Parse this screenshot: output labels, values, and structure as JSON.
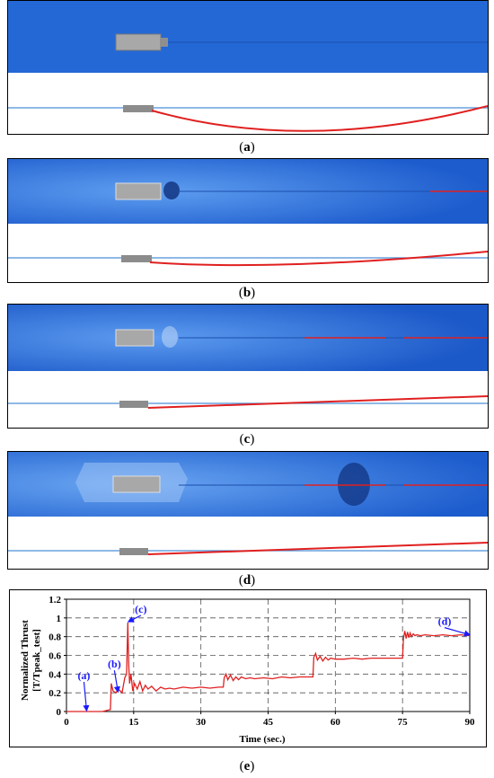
{
  "captions": {
    "a": "a",
    "b": "b",
    "c": "c",
    "d": "d",
    "e": "e"
  },
  "colors": {
    "water_dark": "#1f5fcf",
    "water_light": "#6aa8f0",
    "cable": "#e02020",
    "waterline": "#4a8fd8",
    "vessel": "#9a9a9a",
    "annotation": "#1a1aff"
  },
  "chart_data": {
    "type": "line",
    "xlabel": "Time (sec.)",
    "ylabel_line1": "Normalized Thrust",
    "ylabel_line2": "[T/Tpeak_test]",
    "xlim": [
      0,
      90
    ],
    "ylim": [
      0,
      1.2
    ],
    "xticks": [
      0,
      15,
      30,
      45,
      60,
      75,
      90
    ],
    "xtick_labels": [
      "0",
      "15",
      "30",
      "45",
      "60",
      "75",
      "90"
    ],
    "yticks": [
      0,
      0.2,
      0.4,
      0.6,
      0.8,
      1,
      1.2
    ],
    "ytick_labels": [
      "0",
      "0.2",
      "0.4",
      "0.6",
      "0.8",
      "1",
      "1.2"
    ],
    "grid": true,
    "series": [
      {
        "x": [
          0,
          8,
          9.8,
          10,
          10.4,
          11,
          11.6,
          12.4,
          13.0,
          13.4,
          13.7,
          13.9,
          14.1,
          14.4,
          14.8,
          15.2,
          15.8,
          16.4,
          17.0,
          17.6,
          18.2,
          19,
          20,
          21,
          22,
          23,
          24,
          26,
          28,
          30,
          32,
          34,
          35,
          35.2,
          35.6,
          36,
          36.6,
          37.2,
          37.8,
          38.4,
          39,
          40,
          41,
          42,
          44,
          46,
          48,
          50,
          52,
          54,
          55,
          55.2,
          55.6,
          56,
          56.6,
          57.2,
          57.8,
          58.4,
          59,
          60,
          62,
          64,
          66,
          68,
          70,
          72,
          74,
          75,
          75.2,
          75.5,
          75.8,
          76.1,
          76.4,
          76.7,
          77,
          77.4,
          77.8,
          78.2,
          79,
          80,
          82,
          84,
          86,
          88,
          90
        ],
        "y": [
          0,
          0,
          0.02,
          0.3,
          0.22,
          0.2,
          0.24,
          0.2,
          0.36,
          0.4,
          0.95,
          0.5,
          0.3,
          0.4,
          0.22,
          0.3,
          0.24,
          0.32,
          0.22,
          0.28,
          0.24,
          0.27,
          0.22,
          0.26,
          0.24,
          0.25,
          0.24,
          0.26,
          0.25,
          0.26,
          0.25,
          0.26,
          0.26,
          0.36,
          0.4,
          0.34,
          0.39,
          0.33,
          0.37,
          0.34,
          0.37,
          0.35,
          0.36,
          0.35,
          0.36,
          0.35,
          0.37,
          0.36,
          0.37,
          0.37,
          0.37,
          0.58,
          0.62,
          0.55,
          0.59,
          0.54,
          0.58,
          0.55,
          0.57,
          0.56,
          0.56,
          0.57,
          0.56,
          0.57,
          0.57,
          0.57,
          0.57,
          0.57,
          0.78,
          0.86,
          0.78,
          0.85,
          0.79,
          0.84,
          0.8,
          0.83,
          0.81,
          0.82,
          0.81,
          0.82,
          0.81,
          0.82,
          0.81,
          0.82,
          0.81
        ]
      }
    ],
    "annotations": [
      {
        "label": "(a)",
        "x": 4.5,
        "y": 0.0
      },
      {
        "label": "(b)",
        "x": 11.5,
        "y": 0.2
      },
      {
        "label": "(c)",
        "x": 13.8,
        "y": 0.95
      },
      {
        "label": "(d)",
        "x": 90,
        "y": 0.81
      }
    ]
  }
}
